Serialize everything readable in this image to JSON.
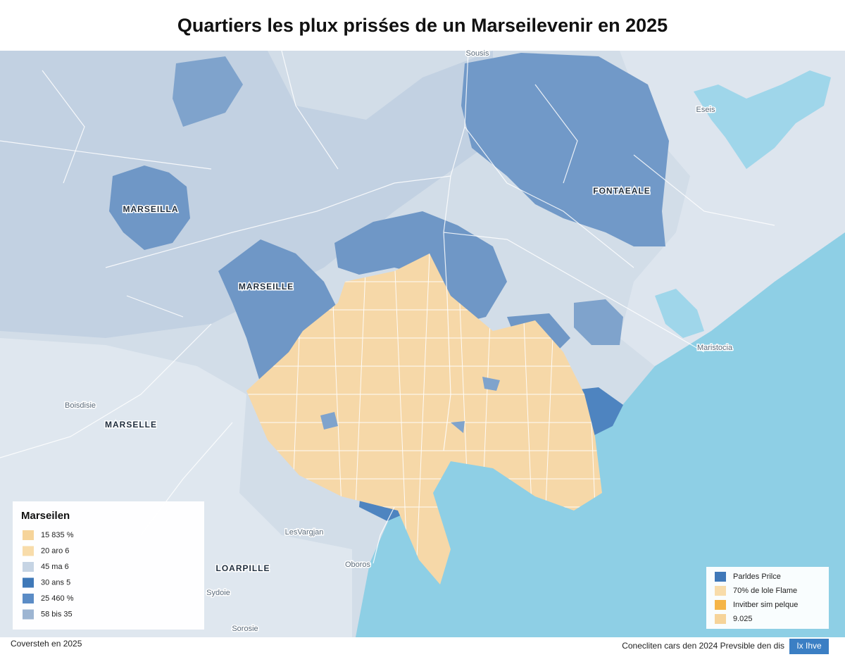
{
  "header": {
    "title": "Quartiers les plux prisśes de un Marseilevenir en 2025"
  },
  "map_labels": [
    "Sousis",
    "MARSEILLA",
    "MARSEILLE",
    "FONTAEALE",
    "Eseis",
    "Maristocia",
    "Boisdisie",
    "MARSELLE",
    "LesVargjan",
    "LOARPILLE",
    "Oboros",
    "Sydoie",
    "Sorosie"
  ],
  "legend_left": {
    "title": "Marseilen",
    "items": [
      {
        "label": "15 835 %",
        "color": "#f6d49a"
      },
      {
        "label": "20 aro 6",
        "color": "#f8dcaa"
      },
      {
        "label": "45 ma 6",
        "color": "#c6d4e4"
      },
      {
        "label": "30 ans 5",
        "color": "#3f78b8"
      },
      {
        "label": "25 460 %",
        "color": "#5b8cc6"
      },
      {
        "label": "58 bis 35",
        "color": "#9db5d2"
      }
    ]
  },
  "legend_right": {
    "items": [
      {
        "label": "Parldes Prilce",
        "color": "#3f78b8"
      },
      {
        "label": "70% de lole Flame",
        "color": "#f8dcaa"
      },
      {
        "label": "Invitber sim pelque",
        "color": "#f5b547"
      },
      {
        "label": "9.025",
        "color": "#f6d49a"
      }
    ]
  },
  "footer": {
    "left": "Coversteh en 2025",
    "right": "Conecliten cars den 2024 Prevsible den dis",
    "badge": "Ix Ihve"
  }
}
